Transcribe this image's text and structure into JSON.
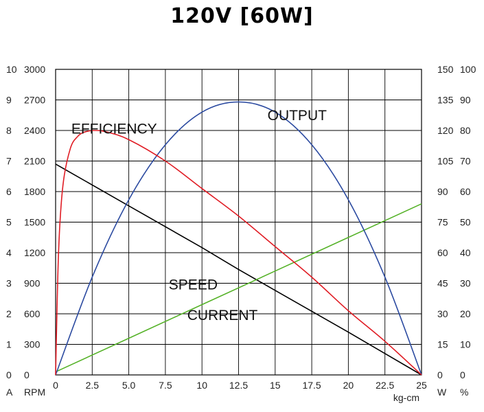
{
  "chart_data": {
    "type": "line",
    "title": "120V [60W]",
    "xlabel": "kg-cm",
    "xlim": [
      0,
      25
    ],
    "x_ticks": [
      "0",
      "2.5",
      "5.0",
      "7.5",
      "10",
      "12.5",
      "15",
      "17.5",
      "20",
      "22.5",
      "25"
    ],
    "axes": {
      "current": {
        "label": "A",
        "range": [
          0,
          10
        ],
        "ticks": [
          "0",
          "1",
          "2",
          "3",
          "4",
          "5",
          "6",
          "7",
          "8",
          "9",
          "10"
        ]
      },
      "speed": {
        "label": "RPM",
        "range": [
          0,
          3000
        ],
        "ticks": [
          "0",
          "300",
          "600",
          "900",
          "1200",
          "1500",
          "1800",
          "2100",
          "2400",
          "2700",
          "3000"
        ]
      },
      "output": {
        "label": "W",
        "range": [
          0,
          150
        ],
        "ticks": [
          "0",
          "15",
          "30",
          "45",
          "60",
          "75",
          "90",
          "105",
          "120",
          "135",
          "150"
        ]
      },
      "efficiency": {
        "label": "%",
        "range": [
          0,
          100
        ],
        "ticks": [
          "0",
          "10",
          "20",
          "30",
          "40",
          "50",
          "60",
          "70",
          "80",
          "90",
          "100"
        ]
      }
    },
    "grid": true,
    "series": [
      {
        "name": "SPEED",
        "axis": "speed",
        "color": "#000000",
        "x": [
          0,
          5,
          10,
          12.5,
          15,
          20,
          25
        ],
        "y": [
          2070,
          1660,
          1250,
          1035,
          830,
          420,
          0
        ]
      },
      {
        "name": "CURRENT",
        "axis": "current",
        "color": "#55b228",
        "x": [
          0,
          5,
          10,
          15,
          20,
          25
        ],
        "y": [
          0.1,
          1.2,
          2.3,
          3.4,
          4.5,
          5.6
        ]
      },
      {
        "name": "OUTPUT",
        "axis": "output",
        "color": "#2b4aa0",
        "x": [
          0,
          2.5,
          5,
          7.5,
          10,
          12.5,
          15,
          17.5,
          20,
          22.5,
          25
        ],
        "y": [
          0,
          48,
          86,
          113,
          129,
          134,
          129,
          113,
          86,
          48,
          0
        ]
      },
      {
        "name": "EFFICIENCY",
        "axis": "efficiency",
        "color": "#e01c24",
        "x": [
          0,
          0.2,
          0.5,
          1,
          1.5,
          2,
          2.7,
          3.5,
          5,
          7.5,
          10,
          12.5,
          15,
          17.5,
          20,
          22.5,
          25
        ],
        "y": [
          0,
          40,
          62,
          74,
          78,
          79.5,
          80,
          79.5,
          77,
          70,
          61,
          52,
          42,
          32,
          21,
          11,
          0
        ]
      }
    ],
    "annotations": [
      {
        "text": "EFFICIENCY",
        "x": 4,
        "y_axis": "efficiency",
        "y": 79
      },
      {
        "text": "OUTPUT",
        "x": 16.5,
        "y_axis": "output",
        "y": 125
      },
      {
        "text": "SPEED",
        "x": 9.4,
        "y_axis": "speed",
        "y": 840
      },
      {
        "text": "CURRENT",
        "x": 11.4,
        "y_axis": "current",
        "y": 1.8
      }
    ]
  }
}
